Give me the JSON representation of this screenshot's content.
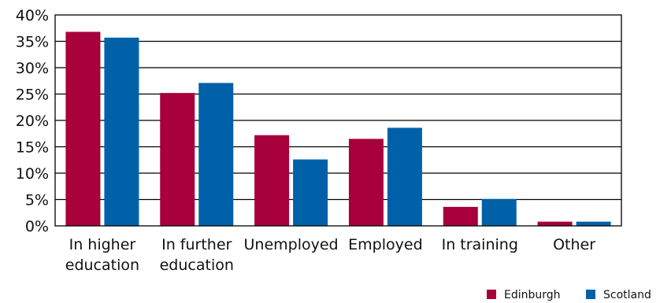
{
  "chart_data": {
    "type": "bar",
    "categories": [
      [
        "In higher",
        "education"
      ],
      [
        "In further",
        "education"
      ],
      [
        "Unemployed"
      ],
      [
        "Employed"
      ],
      [
        "In training"
      ],
      [
        "Other"
      ]
    ],
    "series": [
      {
        "name": "Edinburgh",
        "color": "#a8003b",
        "values": [
          36.8,
          25.2,
          17.2,
          16.5,
          3.6,
          0.8
        ]
      },
      {
        "name": "Scotland",
        "color": "#0061a8",
        "values": [
          35.7,
          27.1,
          12.6,
          18.6,
          5.1,
          0.8
        ]
      }
    ],
    "y_ticks": [
      "0%",
      "5%",
      "10%",
      "15%",
      "20%",
      "25%",
      "30%",
      "35%",
      "40%"
    ],
    "ylim": [
      0,
      40
    ],
    "grid": true,
    "legend_position": "bottom-right",
    "title": "",
    "xlabel": "",
    "ylabel": ""
  }
}
